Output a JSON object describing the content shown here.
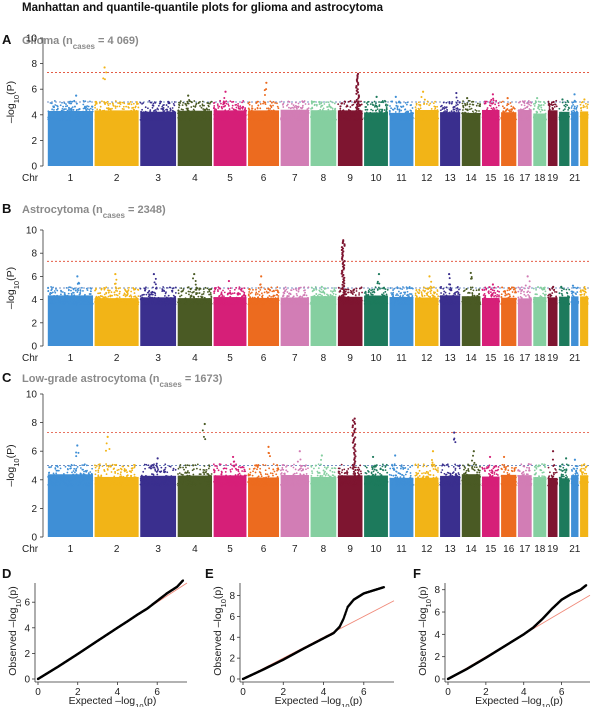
{
  "figure_title": "Manhattan and quantile-quantile plots for glioma and astrocytoma",
  "colors": {
    "chromosomes": [
      "#3f8fd6",
      "#f2b417",
      "#3a2f8e",
      "#4a5a24",
      "#d61f78",
      "#ec6b1f",
      "#d27db5",
      "#85cfa0",
      "#7e1530",
      "#1d7a5c"
    ],
    "significance_line": "#e0452b",
    "suggestive_line": "#4a6fb0",
    "qq_expected_line": "#f08a7a",
    "qq_points": "#000000"
  },
  "chart_data": [
    {
      "type": "scatter",
      "subtype": "manhattan",
      "panel": "A",
      "title": "Glioma (n",
      "title_sub": "cases",
      "title_suffix": " = 4 069)",
      "ylabel_main": "–log",
      "ylabel_sub": "10",
      "ylabel_tail": "(P)",
      "ylim": [
        0,
        10
      ],
      "yticks": [
        "0",
        "2",
        "4",
        "6",
        "8",
        "10"
      ],
      "x_axis_label": "Chr",
      "chromosome_labels": [
        "1",
        "",
        "2",
        "",
        "3",
        "",
        "4",
        "",
        "5",
        "",
        "6",
        "",
        "7",
        "",
        "8",
        "",
        "9",
        "",
        "10",
        "",
        "11",
        "",
        "12",
        "",
        "13",
        "",
        "14",
        "",
        "15",
        "16",
        "17",
        "18",
        "19",
        "",
        "21"
      ],
      "chromosomes": [
        1,
        2,
        3,
        4,
        5,
        6,
        7,
        8,
        9,
        10,
        11,
        12,
        13,
        14,
        15,
        16,
        17,
        18,
        19,
        20,
        21,
        22
      ],
      "hlines": [
        7.3,
        5.0
      ],
      "peak_max": [
        5.5,
        7.7,
        5.0,
        5.5,
        5.8,
        6.5,
        5.0,
        5.0,
        7.3,
        5.4,
        5.4,
        5.8,
        5.7,
        5.3,
        5.6,
        5.3,
        5.0,
        5.3,
        5.0,
        5.2,
        5.6,
        5.2
      ]
    },
    {
      "type": "scatter",
      "subtype": "manhattan",
      "panel": "B",
      "title": "Astrocytoma (n",
      "title_sub": "cases",
      "title_suffix": " = 2348)",
      "ylabel_main": "–log",
      "ylabel_sub": "10",
      "ylabel_tail": "(P)",
      "ylim": [
        0,
        10
      ],
      "yticks": [
        "0",
        "2",
        "4",
        "6",
        "8",
        "10"
      ],
      "x_axis_label": "Chr",
      "chromosome_labels": [
        "1",
        "",
        "2",
        "",
        "3",
        "",
        "4",
        "",
        "5",
        "",
        "6",
        "",
        "7",
        "",
        "8",
        "",
        "9",
        "",
        "10",
        "",
        "11",
        "",
        "12",
        "",
        "13",
        "",
        "14",
        "",
        "15",
        "16",
        "17",
        "18",
        "19",
        "",
        "21"
      ],
      "chromosomes": [
        1,
        2,
        3,
        4,
        5,
        6,
        7,
        8,
        9,
        10,
        11,
        12,
        13,
        14,
        15,
        16,
        17,
        18,
        19,
        20,
        21,
        22
      ],
      "hlines": [
        7.3,
        5.0
      ],
      "peak_max": [
        6.0,
        6.2,
        6.2,
        6.2,
        5.6,
        6.0,
        5.0,
        5.1,
        9.2,
        6.2,
        5.0,
        6.0,
        6.2,
        6.3,
        5.3,
        5.0,
        6.0,
        4.9,
        5.1,
        5.1,
        5.2,
        4.8
      ]
    },
    {
      "type": "scatter",
      "subtype": "manhattan",
      "panel": "C",
      "title": "Low-grade astrocytoma (n",
      "title_sub": "cases",
      "title_suffix": " = 1673)",
      "ylabel_main": "–log",
      "ylabel_sub": "10",
      "ylabel_tail": "(P)",
      "ylim": [
        0,
        10
      ],
      "yticks": [
        "0",
        "2",
        "4",
        "6",
        "8",
        "10"
      ],
      "x_axis_label": "Chr",
      "chromosome_labels": [
        "1",
        "",
        "2",
        "",
        "3",
        "",
        "4",
        "",
        "5",
        "",
        "6",
        "",
        "7",
        "",
        "8",
        "",
        "9",
        "",
        "10",
        "",
        "11",
        "",
        "12",
        "",
        "13",
        "",
        "14",
        "",
        "15",
        "16",
        "17",
        "18",
        "19",
        "",
        "21"
      ],
      "chromosomes": [
        1,
        2,
        3,
        4,
        5,
        6,
        7,
        8,
        9,
        10,
        11,
        12,
        13,
        14,
        15,
        16,
        17,
        18,
        19,
        20,
        21,
        22
      ],
      "hlines": [
        7.3,
        5.0
      ],
      "peak_max": [
        6.4,
        7.0,
        5.5,
        7.9,
        5.6,
        6.3,
        6.0,
        5.7,
        8.3,
        5.6,
        5.7,
        6.0,
        7.3,
        6.0,
        5.6,
        5.6,
        5.1,
        5.0,
        6.0,
        5.5,
        5.4,
        5.0
      ]
    },
    {
      "type": "scatter",
      "subtype": "qq",
      "panel": "D",
      "xlabel_main": "Expected –log",
      "xlabel_sub": "10",
      "xlabel_tail": "(p)",
      "ylabel_main": "Observed –log",
      "ylabel_sub": "10",
      "ylabel_tail": "(p)",
      "xlim": [
        0,
        7.5
      ],
      "ylim": [
        0,
        7.5
      ],
      "xticks": [
        "0",
        "2",
        "4",
        "6"
      ],
      "yticks": [
        "0",
        "2",
        "4",
        "6"
      ],
      "curve": [
        [
          0,
          0
        ],
        [
          1,
          0.95
        ],
        [
          2,
          1.95
        ],
        [
          3,
          2.98
        ],
        [
          4,
          4.0
        ],
        [
          4.5,
          4.5
        ],
        [
          5,
          5.02
        ],
        [
          5.5,
          5.5
        ],
        [
          6,
          6.1
        ],
        [
          6.5,
          6.7
        ],
        [
          7.0,
          7.2
        ],
        [
          7.3,
          7.7
        ]
      ]
    },
    {
      "type": "scatter",
      "subtype": "qq",
      "panel": "E",
      "xlabel_main": "Expected –log",
      "xlabel_sub": "10",
      "xlabel_tail": "(p)",
      "ylabel_main": "Observed –log",
      "ylabel_sub": "10",
      "ylabel_tail": "(p)",
      "xlim": [
        0,
        7.5
      ],
      "ylim": [
        0,
        9.2
      ],
      "xticks": [
        "0",
        "2",
        "4",
        "6"
      ],
      "yticks": [
        "0",
        "2",
        "4",
        "6",
        "8"
      ],
      "curve": [
        [
          0,
          0
        ],
        [
          1,
          0.9
        ],
        [
          2,
          1.85
        ],
        [
          3,
          2.9
        ],
        [
          4,
          3.9
        ],
        [
          4.5,
          4.4
        ],
        [
          4.8,
          5.0
        ],
        [
          5.0,
          5.8
        ],
        [
          5.2,
          6.9
        ],
        [
          5.5,
          7.6
        ],
        [
          6.0,
          8.2
        ],
        [
          6.5,
          8.5
        ],
        [
          7.0,
          8.8
        ]
      ]
    },
    {
      "type": "scatter",
      "subtype": "qq",
      "panel": "F",
      "xlabel_main": "Expected –log",
      "xlabel_sub": "10",
      "xlabel_tail": "(p)",
      "ylabel_main": "Observed –log",
      "ylabel_sub": "10",
      "ylabel_tail": "(p)",
      "xlim": [
        0,
        7.5
      ],
      "ylim": [
        0,
        8.6
      ],
      "xticks": [
        "0",
        "2",
        "4",
        "6"
      ],
      "yticks": [
        "0",
        "2",
        "4",
        "6",
        "8"
      ],
      "curve": [
        [
          0,
          0
        ],
        [
          1,
          0.9
        ],
        [
          2,
          1.9
        ],
        [
          3,
          2.95
        ],
        [
          4,
          4.0
        ],
        [
          4.5,
          4.6
        ],
        [
          5,
          5.4
        ],
        [
          5.5,
          6.3
        ],
        [
          6,
          7.1
        ],
        [
          6.5,
          7.6
        ],
        [
          7,
          8.0
        ],
        [
          7.3,
          8.4
        ]
      ]
    }
  ],
  "panel_letters": [
    "A",
    "B",
    "C",
    "D",
    "E",
    "F"
  ]
}
